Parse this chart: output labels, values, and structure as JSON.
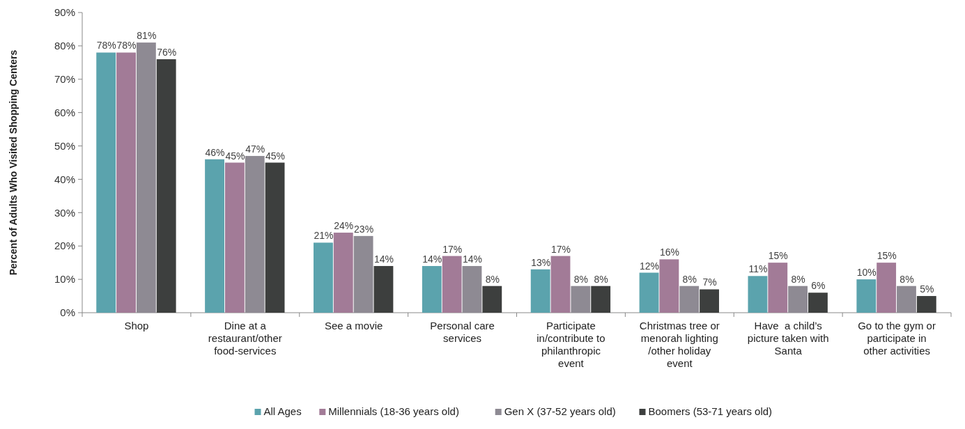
{
  "chart_data": {
    "type": "bar",
    "ylabel": "Percent of Adults Who Visited Shopping Centers",
    "categories": [
      "Shop",
      "Dine at a restaurant/other food-services",
      "See a movie",
      "Personal care services",
      "Participate in/contribute to philanthropic event",
      "Christmas tree or menorah lighting /other holiday event",
      "Have  a child’s picture taken with Santa",
      "Go to the gym or participate in other activities"
    ],
    "series": [
      {
        "name": "All Ages",
        "color": "#5ba3ad",
        "values": [
          78,
          46,
          21,
          14,
          13,
          12,
          11,
          10
        ],
        "value_labels": [
          "78%",
          "46%",
          "21%",
          "14%",
          "13%",
          "12%",
          "11%",
          "10%"
        ]
      },
      {
        "name": "Millennials (18-36 years old)",
        "color": "#a27b97",
        "values": [
          78,
          45,
          24,
          17,
          17,
          16,
          15,
          15
        ],
        "value_labels": [
          "78%",
          "45%",
          "24%",
          "17%",
          "17%",
          "16%",
          "15%",
          "15%"
        ]
      },
      {
        "name": "Gen X (37-52 years old)",
        "color": "#8e8a93",
        "values": [
          81,
          47,
          23,
          14,
          8,
          8,
          8,
          8
        ],
        "value_labels": [
          "81%",
          "47%",
          "23%",
          "14%",
          "8%",
          "8%",
          "8%",
          "8%"
        ]
      },
      {
        "name": "Boomers (53-71 years old)",
        "color": "#3d3f3e",
        "values": [
          76,
          45,
          14,
          8,
          8,
          7,
          6,
          5
        ],
        "value_labels": [
          "76%",
          "45%",
          "14%",
          "8%",
          "8%",
          "7%",
          "6%",
          "5%"
        ]
      }
    ],
    "ylim": [
      0,
      90
    ],
    "yticks": [
      {
        "value": 0,
        "label": "0%"
      },
      {
        "value": 10,
        "label": "10%"
      },
      {
        "value": 20,
        "label": "20%"
      },
      {
        "value": 30,
        "label": "30%"
      },
      {
        "value": 40,
        "label": "40%"
      },
      {
        "value": 50,
        "label": "50%"
      },
      {
        "value": 60,
        "label": "60%"
      },
      {
        "value": 70,
        "label": "70%"
      },
      {
        "value": 80,
        "label": "80%"
      },
      {
        "value": 90,
        "label": "90%"
      }
    ],
    "legend": "bottom",
    "grid": false
  }
}
